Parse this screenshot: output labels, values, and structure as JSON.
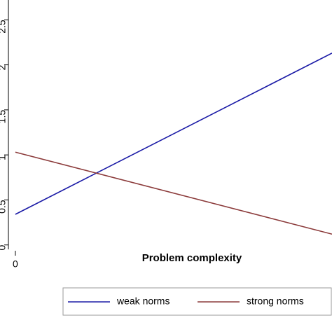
{
  "chart_data": {
    "type": "line",
    "x_label": "Problem complexity",
    "x": [
      0,
      1
    ],
    "series": [
      {
        "name": "weak norms",
        "color": "#1a1aa6",
        "values": [
          0.34,
          2.13
        ]
      },
      {
        "name": "strong norms",
        "color": "#8b3a3a",
        "values": [
          1.03,
          0.12
        ]
      }
    ],
    "xlim": [
      -0.022,
      1
    ],
    "xticks": [
      0
    ],
    "ylim": [
      -0.08,
      2.72
    ],
    "yticks": [
      0,
      0.5,
      1,
      1.5,
      2,
      2.5
    ],
    "grid": false,
    "legend": "bottom"
  }
}
